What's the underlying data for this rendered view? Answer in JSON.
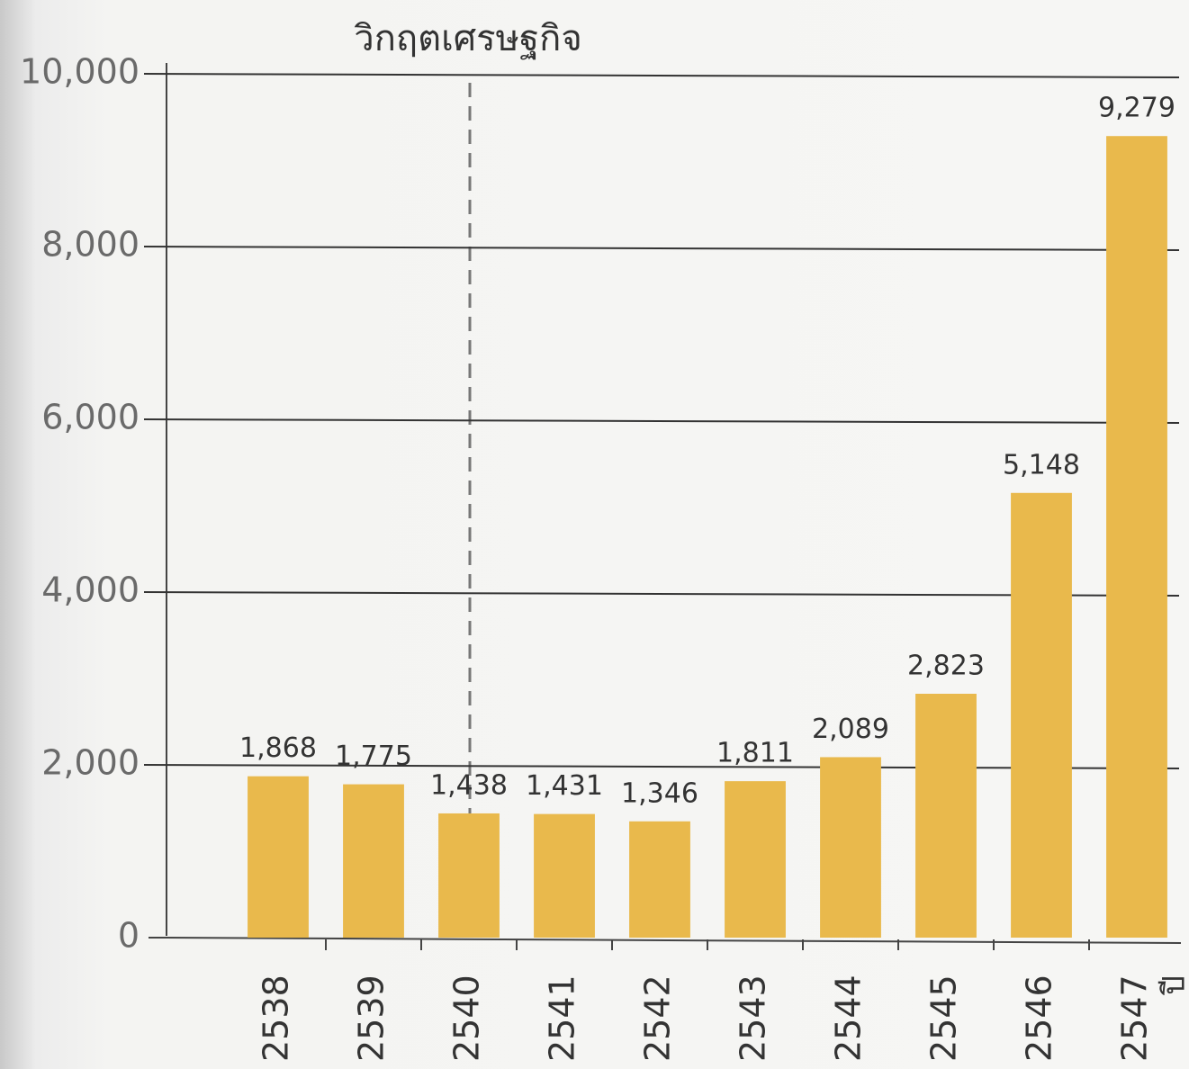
{
  "chart_data": {
    "type": "bar",
    "annotation": "วิกฤตเศรษฐกิจ",
    "x_label": "ปี",
    "categories": [
      "2538",
      "2539",
      "2540",
      "2541",
      "2542",
      "2543",
      "2544",
      "2545",
      "2546",
      "2547"
    ],
    "values": [
      1868,
      1775,
      1438,
      1431,
      1346,
      1811,
      2089,
      2823,
      5148,
      9279
    ],
    "value_labels": [
      "1,868",
      "1,775",
      "1,438",
      "1,431",
      "1,346",
      "1,811",
      "2,089",
      "2,823",
      "5,148",
      "9,279"
    ],
    "color": "#e9b94c",
    "ylim": [
      0,
      10000
    ],
    "yticks": [
      0,
      {
        "value": 2000,
        "label": "2,000"
      },
      {
        "value": 4000,
        "label": "4,000"
      },
      {
        "value": 6000,
        "label": "6,000"
      },
      {
        "value": 8000,
        "label": "8,000"
      },
      {
        "value": 10000,
        "label": "10,000"
      }
    ],
    "grid": true
  }
}
